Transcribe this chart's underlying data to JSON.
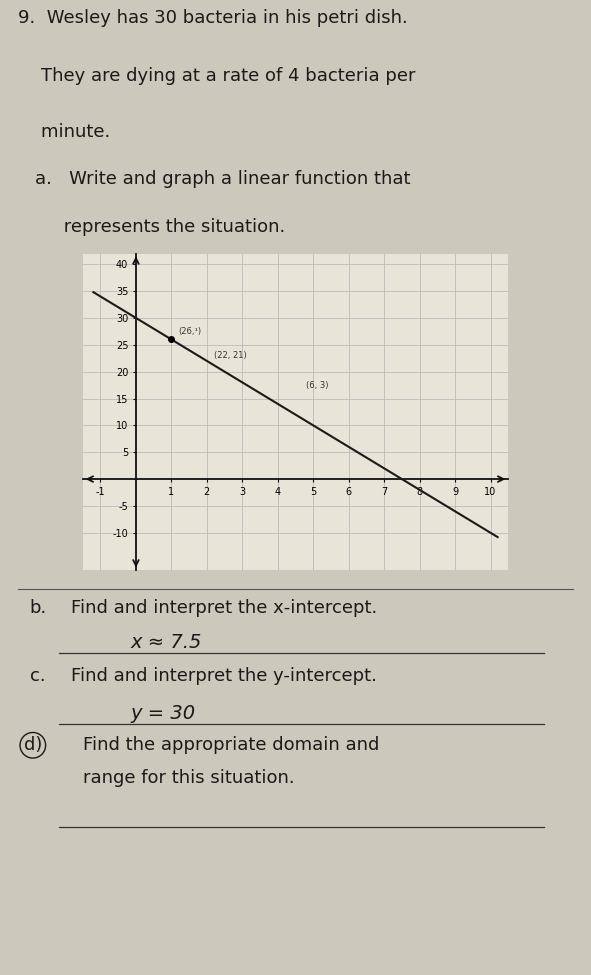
{
  "problem_number": "9.",
  "problem_line1": "Wesley has 30 bacteria in his petri dish.",
  "problem_line2": "They are dying at a rate of 4 bacteria per",
  "problem_line3": "minute.",
  "part_a_line1": "a.   Write and graph a linear function that",
  "part_a_line2": "     represents the situation.",
  "part_b_label": "b.",
  "part_b_question": "Find and interpret the x-intercept.",
  "part_b_answer": "x ≈ 7.5",
  "part_c_label": "c.",
  "part_c_question": "Find and interpret the y-intercept.",
  "part_c_answer": "y = 30",
  "part_d_label": "d)",
  "part_d_line1": "Find the appropriate domain and",
  "part_d_line2": "range for this situation.",
  "slope": -4,
  "y_intercept": 30,
  "x_min": -1,
  "x_max": 10,
  "y_min": -15,
  "y_max": 40,
  "x_ticks": [
    -1,
    1,
    2,
    3,
    4,
    5,
    6,
    7,
    8,
    9,
    10
  ],
  "y_ticks": [
    -10,
    -5,
    5,
    10,
    15,
    20,
    25,
    30,
    35,
    40
  ],
  "grid_color": "#bbbbbb",
  "line_color": "#1a1a1a",
  "bg_color": "#cdc8bc",
  "graph_bg": "#e8e4d8",
  "text_color": "#1a1a1a",
  "font_size_body": 13,
  "font_size_graph": 7,
  "line_x_start": -1.2,
  "line_x_end": 10.2,
  "dot_x": 1,
  "dot_y": 26,
  "ann1_x": 1.15,
  "ann1_y": 26.5,
  "ann1_text": "(26,¹)",
  "ann2_x": 2.1,
  "ann2_y": 22.5,
  "ann2_text": "(22, 21)",
  "ann3_x": 4.8,
  "ann3_y": 18.5,
  "ann3_text": "(6, 3)"
}
